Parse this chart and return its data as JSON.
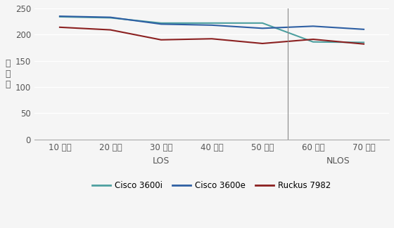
{
  "ylabel": "吞吐量",
  "xlabel_los": "LOS",
  "xlabel_nlos": "NLOS",
  "categories": [
    "10 英尺",
    "20 英尺",
    "30 英尺",
    "40 英尺",
    "50 英尺",
    "60 英尺",
    "70 英尺"
  ],
  "los_count": 5,
  "series": [
    {
      "name": "Cisco 3600i",
      "color": "#4da0a0",
      "values": [
        234,
        232,
        222,
        222,
        222,
        186,
        185
      ]
    },
    {
      "name": "Cisco 3600e",
      "color": "#2e5fa3",
      "values": [
        235,
        233,
        220,
        218,
        212,
        216,
        210
      ]
    },
    {
      "name": "Ruckus 7982",
      "color": "#8b2020",
      "values": [
        214,
        209,
        190,
        192,
        183,
        191,
        182
      ]
    }
  ],
  "ylim": [
    0,
    250
  ],
  "yticks": [
    0,
    50,
    100,
    150,
    200,
    250
  ],
  "background_color": "#f5f5f5",
  "plot_bg_color": "#f5f5f5",
  "grid_color": "#ffffff",
  "spine_color": "#aaaaaa",
  "tick_color": "#555555",
  "legend_fontsize": 8.5,
  "ylabel_fontsize": 9,
  "tick_fontsize": 8.5,
  "xlabel_fontsize": 9
}
